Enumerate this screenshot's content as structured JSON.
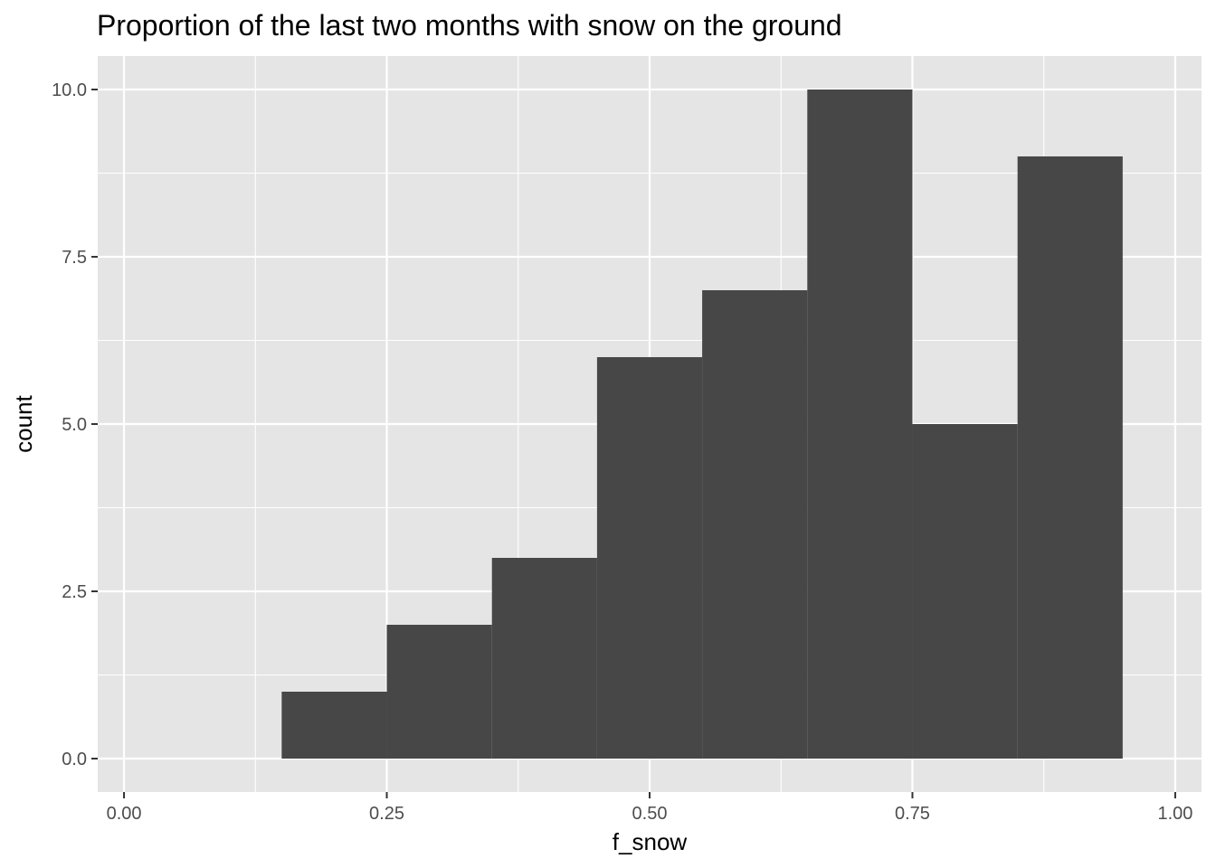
{
  "chart_data": {
    "type": "bar",
    "title": "Proportion of the last two months with snow on the ground",
    "xlabel": "f_snow",
    "ylabel": "count",
    "xlim": [
      -0.025,
      1.025
    ],
    "ylim": [
      -0.5,
      10.5
    ],
    "x_ticks": [
      0,
      0.25,
      0.5,
      0.75,
      1
    ],
    "x_tick_labels": [
      "0.00",
      "0.25",
      "0.50",
      "0.75",
      "1.00"
    ],
    "y_ticks": [
      0,
      2.5,
      5,
      7.5,
      10
    ],
    "y_tick_labels": [
      "0.0",
      "2.5",
      "5.0",
      "7.5",
      "10.0"
    ],
    "bins": [
      {
        "x_min": 0.15,
        "x_max": 0.25,
        "count": 1
      },
      {
        "x_min": 0.25,
        "x_max": 0.35,
        "count": 2
      },
      {
        "x_min": 0.35,
        "x_max": 0.45,
        "count": 3
      },
      {
        "x_min": 0.45,
        "x_max": 0.55,
        "count": 6
      },
      {
        "x_min": 0.55,
        "x_max": 0.65,
        "count": 7
      },
      {
        "x_min": 0.65,
        "x_max": 0.75,
        "count": 10
      },
      {
        "x_min": 0.75,
        "x_max": 0.85,
        "count": 5
      },
      {
        "x_min": 0.85,
        "x_max": 0.95,
        "count": 9
      }
    ],
    "grid": true,
    "legend": "none",
    "colors": {
      "panel_background": "#e5e5e5",
      "grid": "#ffffff",
      "bar_fill": "#474747",
      "tick_label": "#4d4d4d",
      "tick_mark": "#333333"
    }
  }
}
